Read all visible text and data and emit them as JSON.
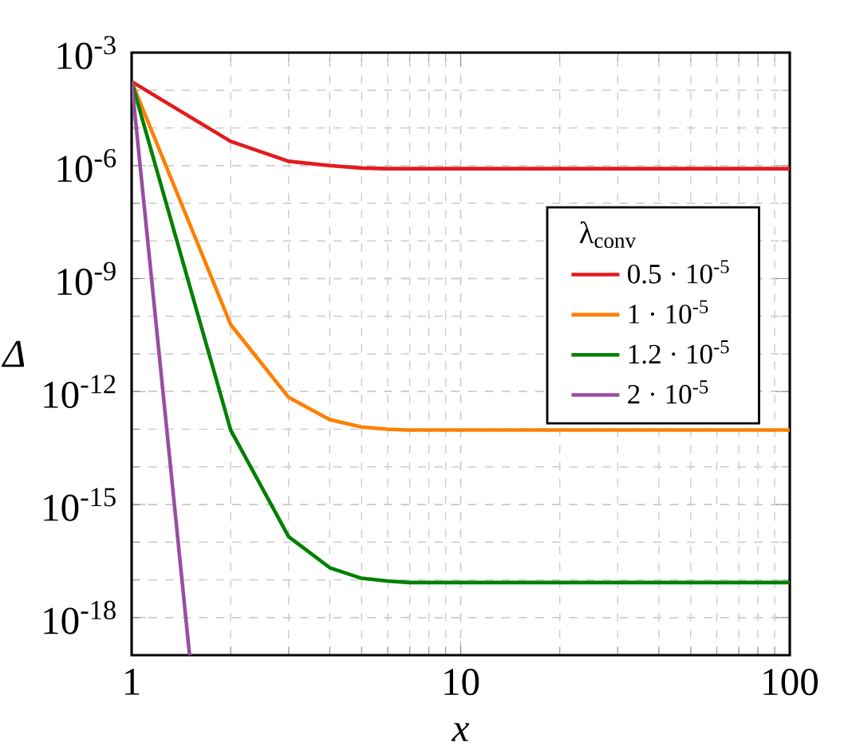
{
  "chart_data": {
    "type": "line",
    "xlabel": "x",
    "ylabel": "Δ",
    "legend_title": "λ$_{conv}$",
    "log": "xy",
    "grid": true,
    "legend": "right",
    "xlim": [
      1,
      100
    ],
    "ylim": [
      1e-19,
      0.001
    ],
    "xticks": [
      1,
      10,
      100
    ],
    "yticks": [
      {
        "value": 0.001,
        "label": "10$^{-3}$"
      },
      {
        "value": 1e-06,
        "label": "10$^{-6}$"
      },
      {
        "value": 1e-09,
        "label": "10$^{-9}$"
      },
      {
        "value": 1e-12,
        "label": "10$^{-12}$"
      },
      {
        "value": 1e-15,
        "label": "10$^{-15}$"
      },
      {
        "value": 1e-18,
        "label": "10$^{-18}$"
      }
    ],
    "series": [
      {
        "name": "0.5 · 10$^{-5}$",
        "color": "#e41a1c",
        "x": [
          1,
          2,
          3,
          4,
          5,
          6,
          10,
          100
        ],
        "values": [
          0.00017,
          4.4e-06,
          1.3e-06,
          1e-06,
          8.6e-07,
          8.3e-07,
          8.3e-07,
          8.3e-07
        ]
      },
      {
        "name": "1 · 10$^{-5}$",
        "color": "#ff7f00",
        "x": [
          1,
          2,
          3,
          4,
          5,
          6,
          7,
          10,
          100
        ],
        "values": [
          0.00017,
          6e-11,
          7e-13,
          1.8e-13,
          1.15e-13,
          1e-13,
          9.5e-14,
          9.5e-14,
          9.5e-14
        ]
      },
      {
        "name": "1.2 · 10$^{-5}$",
        "color": "#008000",
        "x": [
          1,
          2,
          3,
          4,
          5,
          6,
          7,
          10,
          100
        ],
        "values": [
          0.00017,
          9.5e-14,
          1.4e-16,
          2.1e-17,
          1.1e-17,
          9.3e-18,
          8.5e-18,
          8.5e-18,
          8.5e-18
        ]
      },
      {
        "name": "2 · 10$^{-5}$",
        "color": "#984ea3",
        "x": [
          1,
          1.5
        ],
        "values": [
          0.00017,
          1e-19
        ]
      }
    ]
  }
}
